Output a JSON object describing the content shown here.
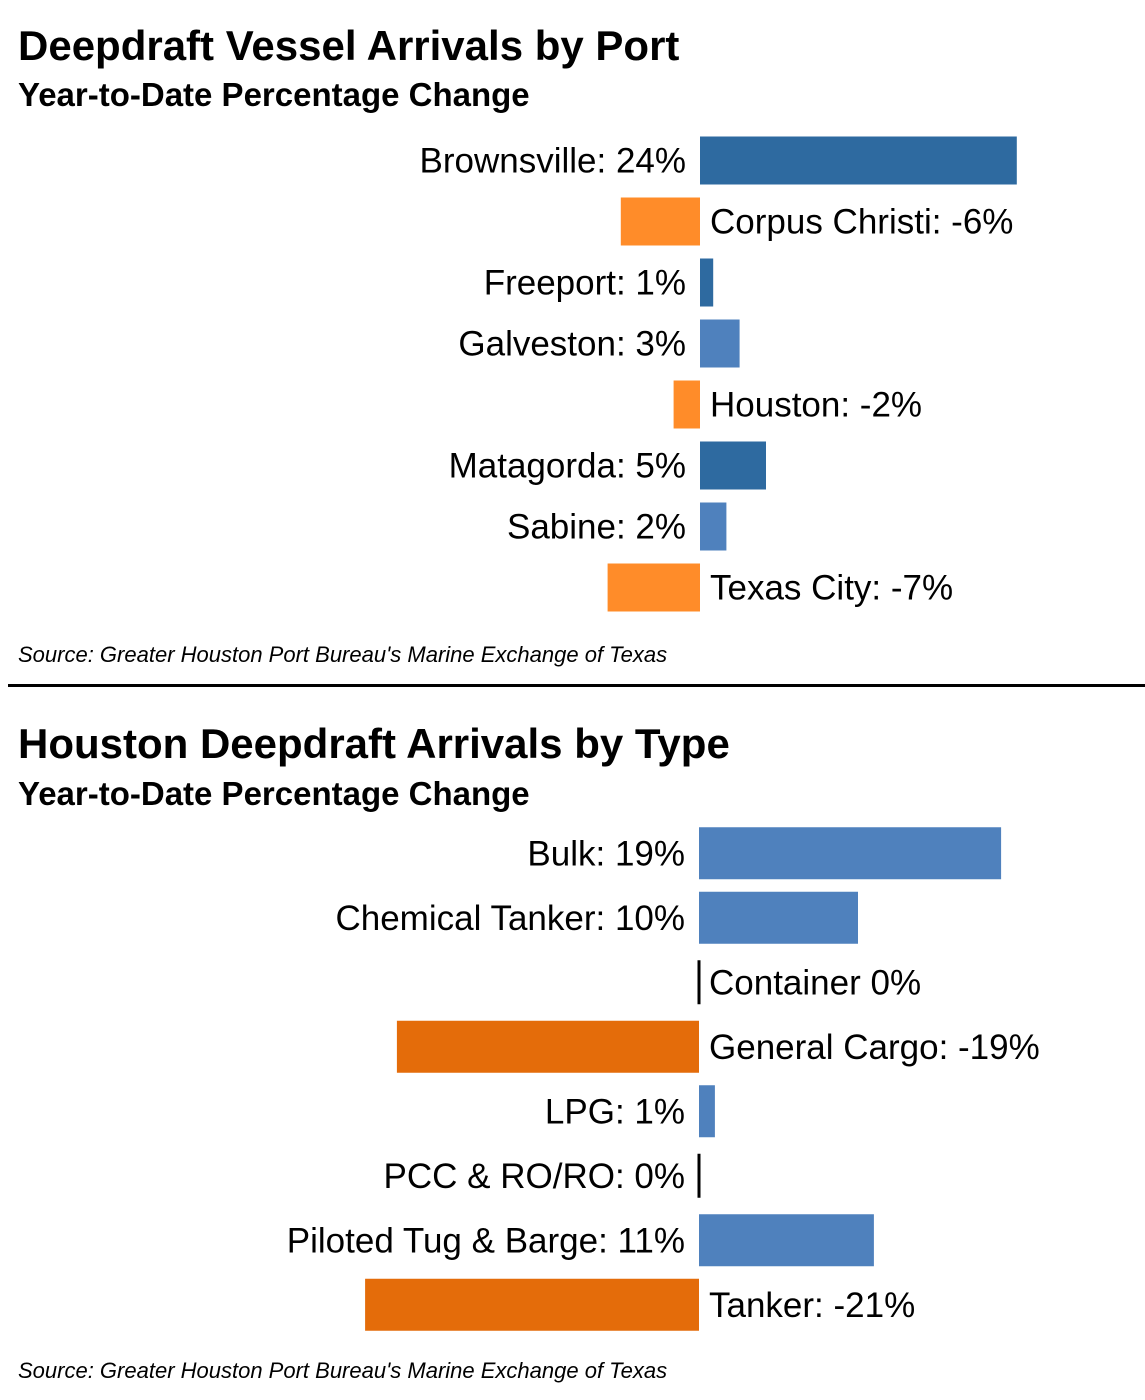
{
  "colors": {
    "ports_positive_dark": "#2e6aa0",
    "ports_positive_light": "#4f81bd",
    "ports_negative": "#ff8c29",
    "types_positive": "#4f81bd",
    "types_negative": "#e46c0a",
    "zero_line": "#000000"
  },
  "chart_data": [
    {
      "type": "bar",
      "orientation": "horizontal",
      "title": "Deepdraft Vessel Arrivals by Port",
      "subtitle": "Year-to-Date Percentage Change",
      "source": "Source: Greater Houston Port Bureau's Marine Exchange of Texas",
      "categories": [
        "Brownsville",
        "Corpus Christi",
        "Freeport",
        "Galveston",
        "Houston",
        "Matagorda",
        "Sabine",
        "Texas City"
      ],
      "values": [
        24,
        -6,
        1,
        3,
        -2,
        5,
        2,
        -7
      ],
      "labels": [
        "Brownsville: 24%",
        "Corpus Christi: -6%",
        "Freeport: 1%",
        "Galveston: 3%",
        "Houston: -2%",
        "Matagorda: 5%",
        "Sabine: 2%",
        "Texas City: -7%"
      ],
      "unit": "%",
      "grid": false,
      "legend": "none"
    },
    {
      "type": "bar",
      "orientation": "horizontal",
      "title": "Houston Deepdraft Arrivals by Type",
      "subtitle": "Year-to-Date Percentage Change",
      "source": "Source: Greater Houston Port Bureau's Marine Exchange of Texas",
      "categories": [
        "Bulk",
        "Chemical Tanker",
        "Container",
        "General Cargo",
        "LPG",
        "PCC & RO/RO",
        "Piloted Tug & Barge",
        "Tanker"
      ],
      "values": [
        19,
        10,
        0,
        -19,
        1,
        0,
        11,
        -21
      ],
      "labels": [
        "Bulk: 19%",
        "Chemical Tanker: 10%",
        "Container 0%",
        "General Cargo: -19%",
        "LPG: 1%",
        "PCC & RO/RO: 0%",
        "Piloted Tug & Barge: 11%",
        "Tanker: -21%"
      ],
      "unit": "%",
      "grid": false,
      "legend": "none"
    }
  ]
}
